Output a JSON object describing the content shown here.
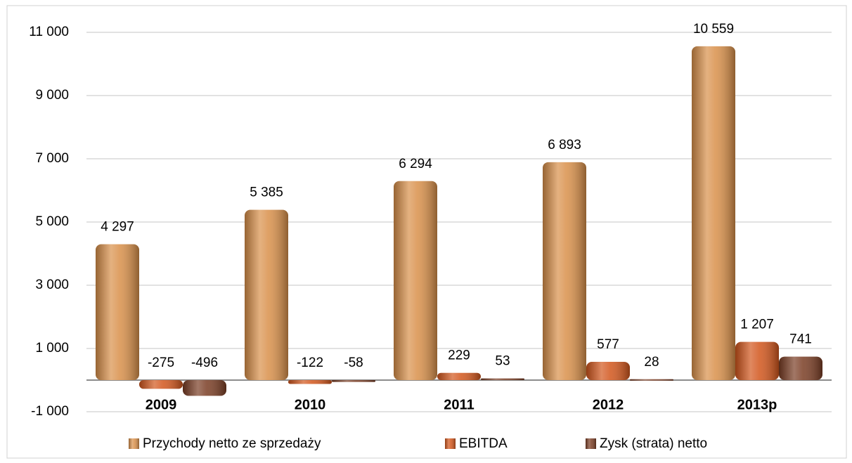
{
  "chart_data": {
    "type": "bar",
    "categories": [
      "2009",
      "2010",
      "2011",
      "2012",
      "2013p"
    ],
    "series": [
      {
        "name": "Przychody netto ze sprzedaży",
        "color": "#d9904a",
        "values": [
          4297,
          5385,
          6294,
          6893,
          10559
        ],
        "value_labels": [
          "4 297",
          "5 385",
          "6 294",
          "6 893",
          "10 559"
        ]
      },
      {
        "name": "EBITDA",
        "color": "#d2561c",
        "values": [
          -275,
          -122,
          229,
          577,
          1207
        ],
        "value_labels": [
          "-275",
          "-122",
          "229",
          "577",
          "1 207"
        ]
      },
      {
        "name": "Zysk (strata) netto",
        "color": "#7a3d24",
        "values": [
          -496,
          -58,
          53,
          28,
          741
        ],
        "value_labels": [
          "-496",
          "-58",
          "53",
          "28",
          "741"
        ]
      }
    ],
    "ylim": [
      -1000,
      11000
    ],
    "yticks": [
      {
        "value": -1000,
        "label": "-1 000"
      },
      {
        "value": 1000,
        "label": "1 000"
      },
      {
        "value": 3000,
        "label": "3 000"
      },
      {
        "value": 5000,
        "label": "5 000"
      },
      {
        "value": 7000,
        "label": "7 000"
      },
      {
        "value": 9000,
        "label": "9 000"
      },
      {
        "value": 11000,
        "label": "11 000"
      }
    ],
    "grid": true,
    "legend": "bottom"
  }
}
